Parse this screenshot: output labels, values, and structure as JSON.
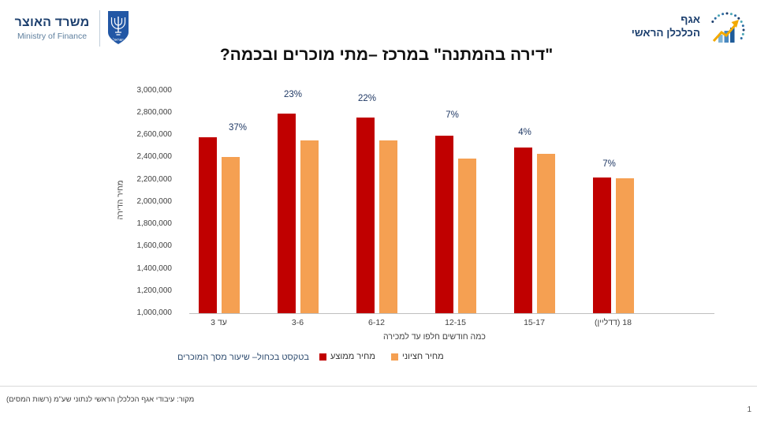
{
  "header": {
    "ministry_he": "משרד האוצר",
    "ministry_en": "Ministry of Finance",
    "division_line1": "אגף",
    "division_line2": "הכלכלן הראשי"
  },
  "title": "\"דירה בהמתנה\" במרכז –מתי מוכרים ובכמה?",
  "chart_data": {
    "type": "bar",
    "title": "\"דירה בהמתנה\" במרכז –מתי מוכרים ובכמה?",
    "categories": [
      "עד 3",
      "3-6",
      "6-12",
      "12-15",
      "15-17",
      "18 (דדליין)"
    ],
    "series": [
      {
        "name": "מחיר ממוצע",
        "color": "#C00000",
        "values": [
          2580000,
          2790000,
          2755000,
          2595000,
          2490000,
          2220000
        ]
      },
      {
        "name": "מחיר חציוני",
        "color": "#F5A052",
        "values": [
          2400000,
          2550000,
          2555000,
          2390000,
          2430000,
          2215000
        ]
      }
    ],
    "percent_labels": [
      "37%",
      "23%",
      "22%",
      "7%",
      "4%",
      "7%"
    ],
    "xlabel": "כמה חודשים חלפו עד למכירה",
    "ylabel": "מחיר הדירה",
    "ylim": [
      1000000,
      3000000
    ],
    "ytick_step": 200000,
    "grid": false,
    "legend_position": "bottom",
    "legend_note": "בטקסט בכחול– שיעור מסך המוכרים",
    "percent_label_color": "#1F3864"
  },
  "footnote": "מקור: עיבודי אגף הכלכלן הראשי לנתוני שע\"מ (רשות המסים)",
  "page_number": "1"
}
